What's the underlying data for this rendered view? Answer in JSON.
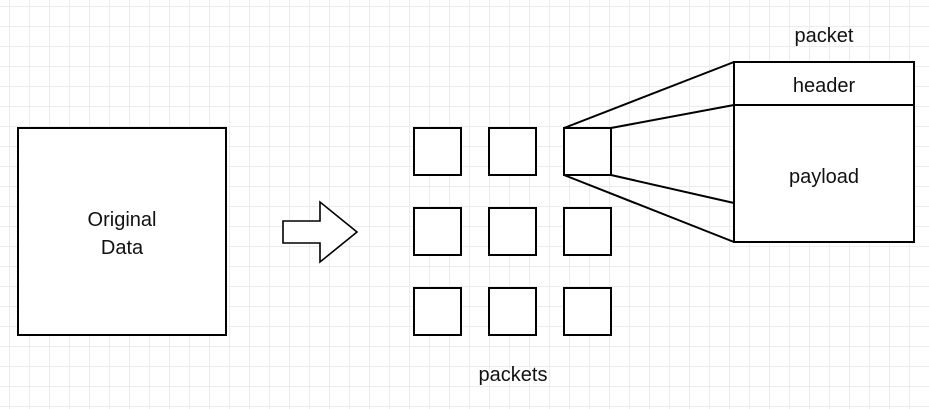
{
  "diagram": {
    "original_data_label_line1": "Original",
    "original_data_label_line2": "Data",
    "packets_label": "packets",
    "packet_label": "packet",
    "header_label": "header",
    "payload_label": "payload"
  },
  "colors": {
    "stroke": "#000000",
    "grid": "#ececec",
    "background": "#ffffff",
    "text": "#111111"
  }
}
